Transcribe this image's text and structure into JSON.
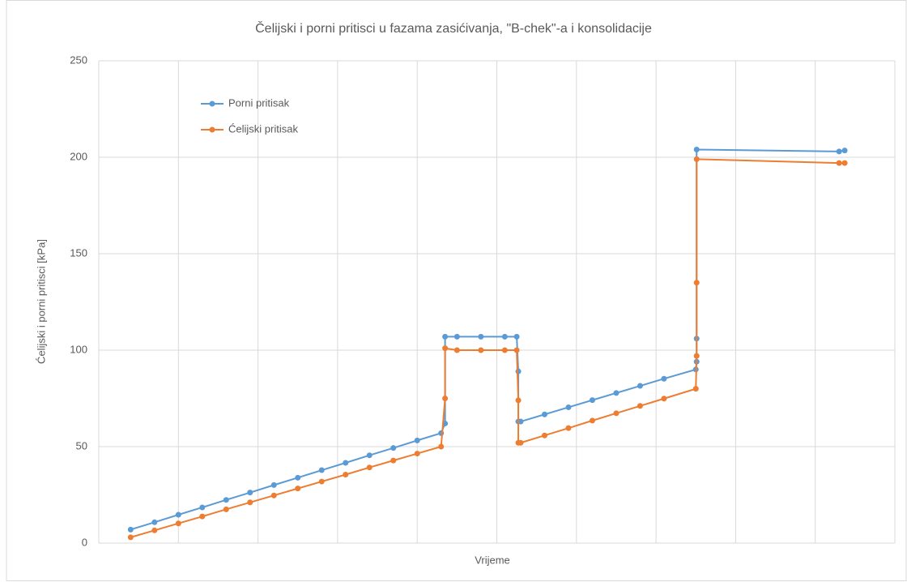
{
  "chart_data": {
    "type": "line",
    "title": "Čelijski i porni pritisci u fazama zasićivanja, \"B-chek\"-a i konsolidacije",
    "x_label": "Vrijeme",
    "y_label": "Ćelijski i porni pritisci  [kPa]",
    "x": [
      0.4,
      0.7,
      1.0,
      1.3,
      1.6,
      1.9,
      2.2,
      2.5,
      2.8,
      3.1,
      3.4,
      3.7,
      4.0,
      4.3,
      4.35,
      4.35,
      4.5,
      4.8,
      5.1,
      5.25,
      5.27,
      5.27,
      5.3,
      5.6,
      5.9,
      6.2,
      6.5,
      6.8,
      7.1,
      7.5,
      7.51,
      7.51,
      7.51,
      9.3,
      9.37
    ],
    "xlim": [
      0,
      10
    ],
    "ylim": [
      0,
      250
    ],
    "yticks": [
      0,
      50,
      100,
      150,
      200,
      250
    ],
    "grid": true,
    "legend": "upper left",
    "series": [
      {
        "name": "Porni pritisak",
        "color": "#5b9bd5",
        "values": [
          7,
          10.8,
          14.7,
          18.5,
          22.4,
          26.2,
          30.1,
          33.9,
          37.8,
          41.6,
          45.5,
          49.3,
          53.2,
          57,
          62,
          107,
          107,
          107,
          107,
          107,
          89,
          63,
          63,
          66.7,
          70.4,
          74.1,
          77.8,
          81.5,
          85.2,
          90,
          94,
          106,
          204,
          203,
          203.5
        ]
      },
      {
        "name": "Ćelijski pritisak",
        "color": "#ed7d31",
        "values": [
          3,
          6.6,
          10.2,
          13.8,
          17.5,
          21.1,
          24.7,
          28.3,
          31.9,
          35.5,
          39.2,
          42.8,
          46.4,
          50,
          75,
          101,
          100,
          100,
          100,
          100,
          74,
          52,
          52,
          55.8,
          59.6,
          63.5,
          67.3,
          71.1,
          74.9,
          80,
          97,
          135,
          199,
          197,
          197
        ]
      }
    ]
  }
}
